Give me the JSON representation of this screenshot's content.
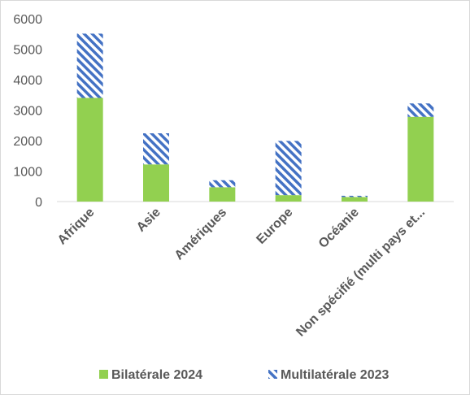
{
  "chart_data": {
    "type": "bar",
    "stacked": true,
    "categories": [
      "Afrique",
      "Asie",
      "Amériques",
      "Europe",
      "Océanie",
      "Non spécifié (multi pays et..."
    ],
    "series": [
      {
        "name": "Bilatérale 2024",
        "values": [
          3400,
          1220,
          470,
          210,
          150,
          2780
        ],
        "color": "#92D050",
        "pattern": "solid"
      },
      {
        "name": "Multilatérale 2023",
        "values": [
          2110,
          1020,
          230,
          1780,
          40,
          440
        ],
        "color": "#4472C4",
        "pattern": "diagonal-hatch"
      }
    ],
    "y_ticks": [
      "0",
      "1000",
      "2000",
      "3000",
      "4000",
      "5000",
      "6000"
    ],
    "ylim": [
      0,
      6000
    ],
    "grid": false,
    "legend_position": "bottom",
    "title": "",
    "xlabel": "",
    "ylabel": ""
  }
}
